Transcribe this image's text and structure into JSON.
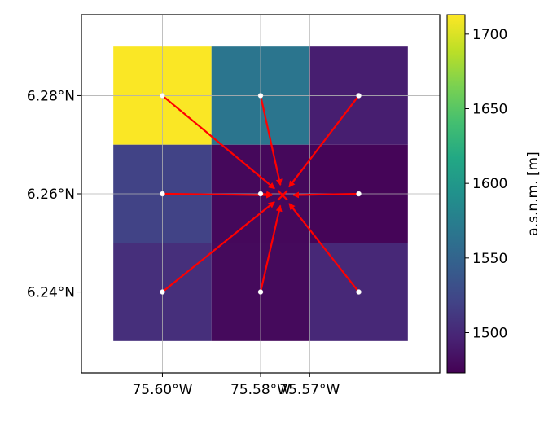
{
  "chart_data": {
    "type": "heatmap",
    "title": "",
    "xlabel": "",
    "ylabel": "",
    "x_ticks": [
      {
        "value": -75.6,
        "label": "75.60°W"
      },
      {
        "value": -75.58,
        "label": "75.58°W"
      },
      {
        "value": -75.57,
        "label": "75.57°W"
      }
    ],
    "y_ticks": [
      {
        "value": 6.28,
        "label": "6.28°N"
      },
      {
        "value": 6.26,
        "label": "6.26°N"
      },
      {
        "value": 6.24,
        "label": "6.24°N"
      }
    ],
    "xlim": [
      -75.6165,
      -75.5435
    ],
    "ylim": [
      6.2235,
      6.2965
    ],
    "grid": true,
    "cells": [
      {
        "lon": -75.6,
        "lat": 6.28,
        "value": 1712
      },
      {
        "lon": -75.58,
        "lat": 6.28,
        "value": 1566
      },
      {
        "lon": -75.56,
        "lat": 6.28,
        "value": 1493
      },
      {
        "lon": -75.6,
        "lat": 6.26,
        "value": 1520
      },
      {
        "lon": -75.58,
        "lat": 6.26,
        "value": 1478
      },
      {
        "lon": -75.56,
        "lat": 6.26,
        "value": 1476
      },
      {
        "lon": -75.6,
        "lat": 6.24,
        "value": 1505
      },
      {
        "lon": -75.58,
        "lat": 6.24,
        "value": 1479
      },
      {
        "lon": -75.56,
        "lat": 6.24,
        "value": 1500
      }
    ],
    "cell_size": 0.02,
    "target": {
      "lon": -75.5755,
      "lat": 6.2597
    },
    "arrow_color": "#ff0000",
    "colorbar": {
      "label": "a.s.n.m. [m]",
      "range": [
        1473,
        1713
      ],
      "ticks": [
        1500,
        1550,
        1600,
        1650,
        1700
      ],
      "colormap": "viridis"
    }
  }
}
